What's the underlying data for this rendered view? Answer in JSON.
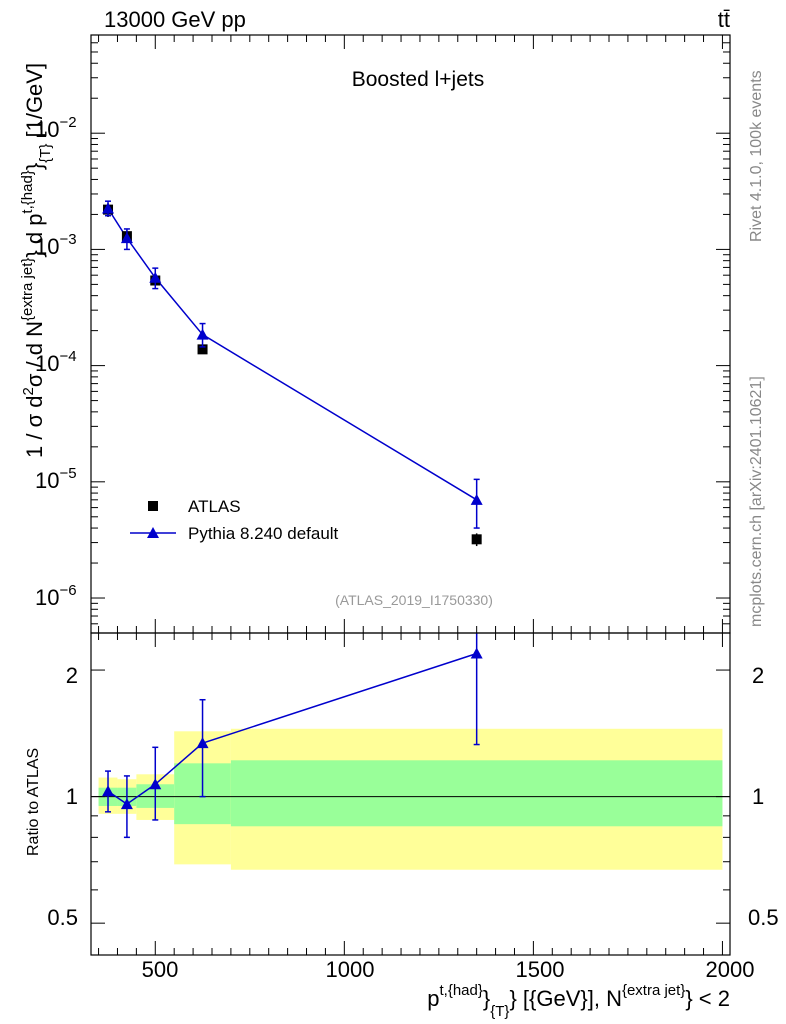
{
  "header": {
    "left": "13000 GeV pp",
    "right": "tt̄"
  },
  "side": {
    "rivet": "Rivet 4.1.0,  100k events",
    "mcplots": "mcplots.cern.ch [arXiv:2401.10621]"
  },
  "colors": {
    "mc": "#0000cc",
    "data": "#000000",
    "band_inner": "#99ff99",
    "band_outer": "#ffff99",
    "watermark": "#999999"
  },
  "chart_data": [
    {
      "type": "scatter",
      "panel": "main",
      "title": "Boosted l+jets",
      "watermark": "(ATLAS_2019_I1750330)",
      "ylabel": "1 / σ d²σ / d N^{extra jet} d p^{t,{had}}_{T} [1/GeV]",
      "ylabel_parts": {
        "a": "1 / σ d",
        "b": "2",
        "c": "σ / d N",
        "d": "{extra jet}",
        "e": "} d p",
        "f": "t,{had}",
        "g": "}",
        "h": "{T}",
        "i": " [1/GeV]"
      },
      "yscale": "log",
      "ylim": [
        5e-07,
        0.07
      ],
      "xlim": [
        330,
        2020
      ],
      "y_tick_labels": [
        {
          "value": 1e-06,
          "base": "10",
          "exp": "−6"
        },
        {
          "value": 1e-05,
          "base": "10",
          "exp": "−5"
        },
        {
          "value": 0.0001,
          "base": "10",
          "exp": "−4"
        },
        {
          "value": 0.001,
          "base": "10",
          "exp": "−3"
        },
        {
          "value": 0.01,
          "base": "10",
          "exp": "−2"
        }
      ],
      "legend": {
        "position": "bottom-left",
        "entries": [
          {
            "label": "ATLAS",
            "marker": "square"
          },
          {
            "label": "Pythia 8.240 default",
            "marker": "triangle-line"
          }
        ]
      },
      "series": [
        {
          "name": "ATLAS",
          "marker": "square",
          "x": [
            375,
            425,
            500,
            625,
            1350
          ],
          "y": [
            0.0022,
            0.0013,
            0.00054,
            0.000138,
            3.2e-06
          ],
          "yerr_lo": [
            0.0019,
            0.00115,
            0.00049,
            0.00013,
            2.8e-06
          ],
          "yerr_hi": [
            0.0025,
            0.00145,
            0.00059,
            0.000146,
            3.6e-06
          ]
        },
        {
          "name": "Pythia 8.240 default",
          "marker": "triangle",
          "x": [
            375,
            425,
            500,
            625,
            1350
          ],
          "y": [
            0.00225,
            0.00125,
            0.00057,
            0.000185,
            7e-06
          ],
          "yerr_lo": [
            0.00195,
            0.001,
            0.00046,
            0.000145,
            4e-06
          ],
          "yerr_hi": [
            0.0026,
            0.0015,
            0.00069,
            0.00023,
            1.05e-05
          ]
        }
      ]
    },
    {
      "type": "line",
      "panel": "ratio",
      "ylabel": "Ratio to ATLAS",
      "xlabel_parts": {
        "a": "p",
        "b": "t,{had}",
        "c": "}",
        "d": "{T}",
        "e": "} [{GeV}], N",
        "f": "{extra jet}",
        "g": "} < 2"
      },
      "yscale": "log",
      "ylim": [
        0.42,
        2.45
      ],
      "xlim": [
        330,
        2020
      ],
      "x_ticks": [
        500,
        1000,
        1500,
        2000
      ],
      "x_tick_labels": [
        "500",
        "1000",
        "1500",
        "2000"
      ],
      "y_ticks": [
        0.5,
        1,
        2
      ],
      "y_tick_labels": [
        "0.5",
        "1",
        "2"
      ],
      "bands": [
        {
          "x_lo": 350,
          "x_hi": 400,
          "inner_lo": 0.95,
          "inner_hi": 1.05,
          "outer_lo": 0.91,
          "outer_hi": 1.11
        },
        {
          "x_lo": 400,
          "x_hi": 450,
          "inner_lo": 0.95,
          "inner_hi": 1.05,
          "outer_lo": 0.91,
          "outer_hi": 1.1
        },
        {
          "x_lo": 450,
          "x_hi": 550,
          "inner_lo": 0.94,
          "inner_hi": 1.07,
          "outer_lo": 0.88,
          "outer_hi": 1.13
        },
        {
          "x_lo": 550,
          "x_hi": 700,
          "inner_lo": 0.86,
          "inner_hi": 1.2,
          "outer_lo": 0.69,
          "outer_hi": 1.43
        },
        {
          "x_lo": 700,
          "x_hi": 2000,
          "inner_lo": 0.85,
          "inner_hi": 1.22,
          "outer_lo": 0.67,
          "outer_hi": 1.45
        }
      ],
      "series": [
        {
          "name": "Pythia 8.240 default",
          "x": [
            375,
            425,
            500,
            625,
            1350
          ],
          "y": [
            1.03,
            0.96,
            1.07,
            1.34,
            2.19
          ],
          "yerr_lo": [
            0.92,
            0.8,
            0.88,
            1.0,
            1.33
          ],
          "yerr_hi": [
            1.15,
            1.12,
            1.31,
            1.7,
            2.45
          ]
        }
      ]
    }
  ]
}
